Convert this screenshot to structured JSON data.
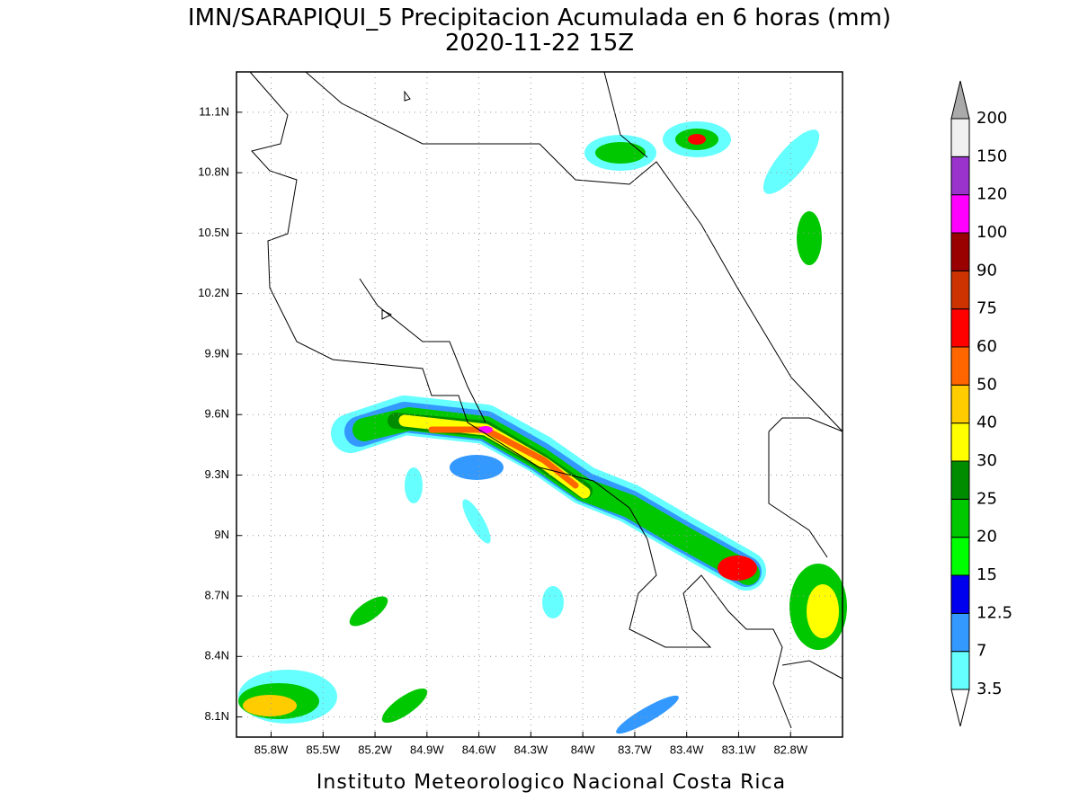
{
  "title": "IMN/SARAPIQUI_5 Precipitacion Acumulada en 6 horas (mm)",
  "subtitle": "2020-11-22 15Z",
  "footer": "Instituto Meteorologico Nacional Costa Rica",
  "map": {
    "xlim": [
      -86.0,
      -82.5
    ],
    "ylim": [
      8.0,
      11.3
    ],
    "grid": true,
    "xticks": [
      {
        "value": -85.8,
        "label": "85.8W"
      },
      {
        "value": -85.5,
        "label": "85.5W"
      },
      {
        "value": -85.2,
        "label": "85.2W"
      },
      {
        "value": -84.9,
        "label": "84.9W"
      },
      {
        "value": -84.6,
        "label": "84.6W"
      },
      {
        "value": -84.3,
        "label": "84.3W"
      },
      {
        "value": -84,
        "label": "84W"
      },
      {
        "value": -83.7,
        "label": "83.7W"
      },
      {
        "value": -83.4,
        "label": "83.4W"
      },
      {
        "value": -83.1,
        "label": "83.1W"
      },
      {
        "value": -82.8,
        "label": "82.8W"
      }
    ],
    "yticks": [
      {
        "value": 8.1,
        "label": "8.1N"
      },
      {
        "value": 8.4,
        "label": "8.4N"
      },
      {
        "value": 8.7,
        "label": "8.7N"
      },
      {
        "value": 9,
        "label": "9N"
      },
      {
        "value": 9.3,
        "label": "9.3N"
      },
      {
        "value": 9.6,
        "label": "9.6N"
      },
      {
        "value": 9.9,
        "label": "9.9N"
      },
      {
        "value": 10.2,
        "label": "10.2N"
      },
      {
        "value": 10.5,
        "label": "10.5N"
      },
      {
        "value": 10.8,
        "label": "10.8N"
      },
      {
        "value": 11.1,
        "label": "11.1N"
      }
    ]
  },
  "colorbar": {
    "levels": [
      3.5,
      7,
      12.5,
      15,
      20,
      25,
      30,
      40,
      50,
      60,
      75,
      90,
      100,
      120,
      150,
      200
    ],
    "colors": [
      "#ffffff",
      "#66ffff",
      "#3399ff",
      "#0000ee",
      "#00ff00",
      "#00c800",
      "#008c00",
      "#ffff00",
      "#ffcc00",
      "#ff6600",
      "#ff0000",
      "#cc3300",
      "#990000",
      "#ff00ff",
      "#9933cc",
      "#f0f0f0",
      "#aaaaaa"
    ]
  }
}
